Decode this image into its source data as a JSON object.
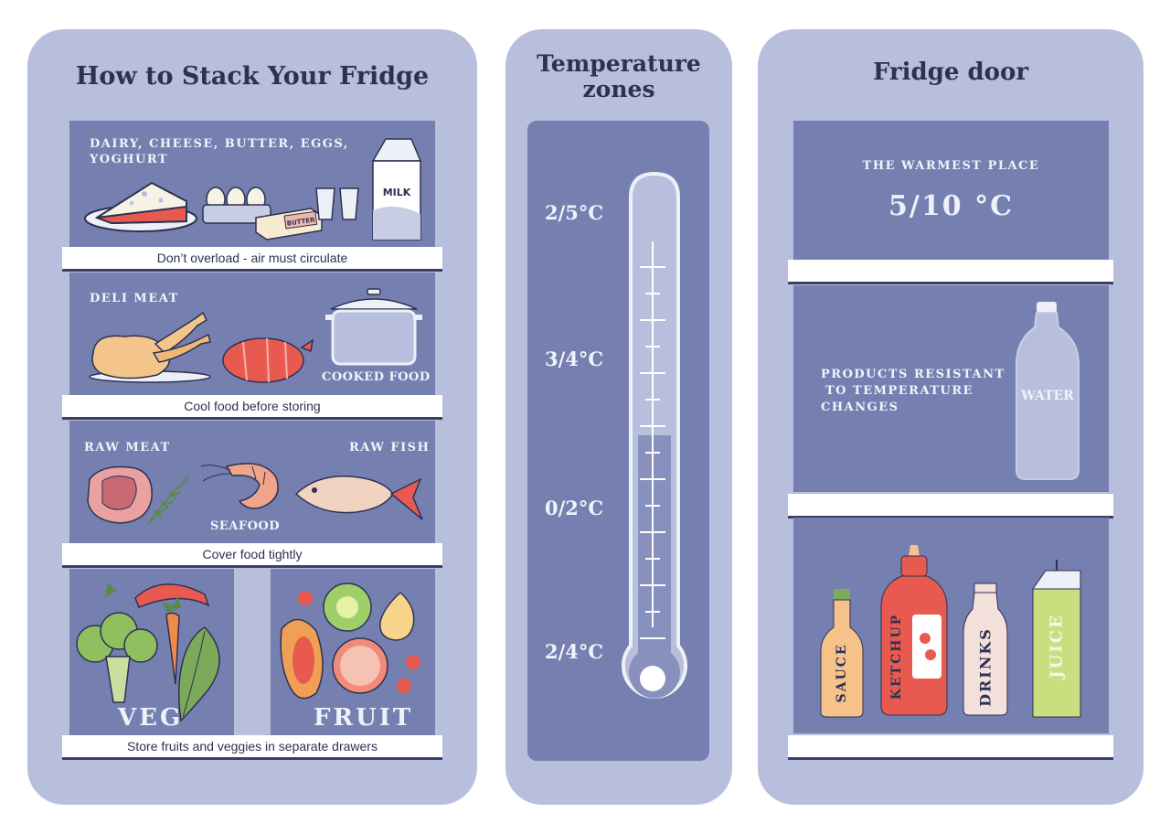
{
  "left_panel": {
    "title": "How to Stack Your Fridge",
    "shelf1": {
      "label_line1": "DAIRY, CHEESE, BUTTER, EGGS,",
      "label_line2": "YOGHURT",
      "milk": "MILK",
      "butter": "BUTTER",
      "tip": "Don’t overload - air must circulate"
    },
    "shelf2": {
      "label": "DELI MEAT",
      "cooked": "COOKED FOOD",
      "tip": "Cool food before storing"
    },
    "shelf3": {
      "raw_meat": "RAW MEAT",
      "raw_fish": "RAW FISH",
      "seafood": "SEAFOOD",
      "tip": "Cover food tightly"
    },
    "drawers": {
      "veg": "VEG",
      "fruit": "FRUIT",
      "tip": "Store fruits and veggies in separate drawers"
    }
  },
  "middle_panel": {
    "title_line1": "Temperature",
    "title_line2": "zones",
    "zones": [
      "2/5°C",
      "3/4°C",
      "0/2°C",
      "2/4°C"
    ]
  },
  "right_panel": {
    "title": "Fridge door",
    "top": {
      "label": "THE WARMEST PLACE",
      "temp": "5/10 °C"
    },
    "middle": {
      "line1": "PRODUCTS RESISTANT",
      "line2": "TO TEMPERATURE",
      "line3": "CHANGES",
      "water": "WATER"
    },
    "bottles": [
      "SAUCE",
      "KETCHUP",
      "DRINKS",
      "JUICE"
    ]
  },
  "colors": {
    "panel": "#b7bfdd",
    "inner": "#7580b0",
    "title": "#2d3152"
  }
}
